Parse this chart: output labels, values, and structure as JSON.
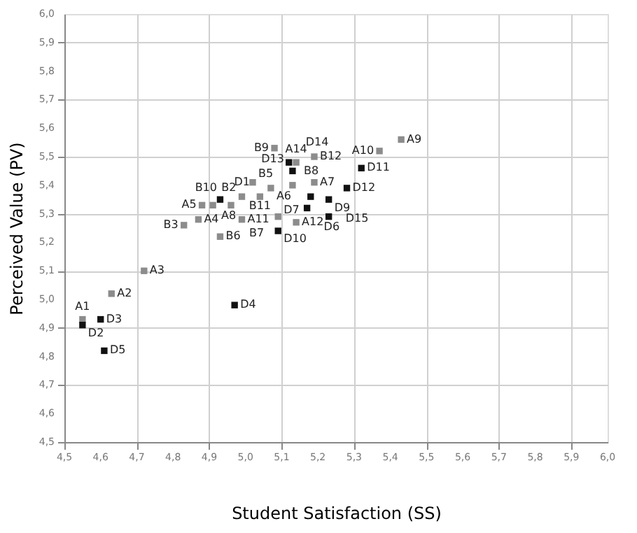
{
  "chart_data": {
    "type": "scatter",
    "xlabel": "Student Satisfaction (SS)",
    "ylabel": "Perceived Value (PV)",
    "marker": "square",
    "grid": true,
    "legend": false,
    "xlim": [
      4.5,
      6.0
    ],
    "ylim": [
      4.5,
      6.0
    ],
    "xticks": [
      {
        "value": 4.5,
        "label": "4,5"
      },
      {
        "value": 4.6,
        "label": "4,6"
      },
      {
        "value": 4.7,
        "label": "4,7"
      },
      {
        "value": 4.8,
        "label": "4,8"
      },
      {
        "value": 4.9,
        "label": "4,9"
      },
      {
        "value": 5.0,
        "label": "5,0"
      },
      {
        "value": 5.1,
        "label": "5,1"
      },
      {
        "value": 5.2,
        "label": "5,2"
      },
      {
        "value": 5.3,
        "label": "5,3"
      },
      {
        "value": 5.4,
        "label": "5,4"
      },
      {
        "value": 5.5,
        "label": "5,5"
      },
      {
        "value": 5.6,
        "label": "5,6"
      },
      {
        "value": 5.7,
        "label": "5,7"
      },
      {
        "value": 5.8,
        "label": "5,8"
      },
      {
        "value": 5.9,
        "label": "5,9"
      },
      {
        "value": 6.0,
        "label": "6,0"
      }
    ],
    "yticks": [
      {
        "value": 4.5,
        "label": "4,5"
      },
      {
        "value": 4.6,
        "label": "4,6"
      },
      {
        "value": 4.7,
        "label": "4,7"
      },
      {
        "value": 4.8,
        "label": "4,8"
      },
      {
        "value": 4.9,
        "label": "4,9"
      },
      {
        "value": 5.0,
        "label": "5,0"
      },
      {
        "value": 5.1,
        "label": "5,1"
      },
      {
        "value": 5.2,
        "label": "5,2"
      },
      {
        "value": 5.3,
        "label": "5,3"
      },
      {
        "value": 5.4,
        "label": "5,4"
      },
      {
        "value": 5.5,
        "label": "5,5"
      },
      {
        "value": 5.6,
        "label": "5,6"
      },
      {
        "value": 5.7,
        "label": "5,7"
      },
      {
        "value": 5.8,
        "label": "5,8"
      },
      {
        "value": 5.9,
        "label": "5,9"
      },
      {
        "value": 6.0,
        "label": "6,0"
      }
    ],
    "series": [
      {
        "color": "#8c8c8c",
        "x": [
          4.55,
          4.63,
          4.72,
          4.87,
          4.88,
          5.07,
          5.19,
          4.91,
          5.43,
          5.37,
          4.99,
          5.14,
          5.14,
          4.99,
          5.02,
          4.83,
          5.08,
          4.93,
          5.09,
          5.13,
          4.96,
          5.04,
          5.19
        ],
        "values": [
          4.93,
          5.02,
          5.1,
          5.28,
          5.33,
          5.39,
          5.41,
          5.33,
          5.56,
          5.52,
          5.28,
          5.27,
          5.48,
          5.36,
          5.41,
          5.26,
          5.53,
          5.22,
          5.29,
          5.4,
          5.33,
          5.36,
          5.5
        ]
      },
      {
        "color": "#111111",
        "x": [
          4.93,
          4.55,
          4.6,
          4.97,
          4.61,
          5.17,
          5.18,
          5.23,
          5.09,
          5.32,
          5.28,
          5.13,
          5.12,
          5.23
        ],
        "values": [
          5.35,
          4.91,
          4.93,
          4.98,
          4.82,
          5.32,
          5.36,
          5.29,
          5.24,
          5.46,
          5.39,
          5.45,
          5.48,
          5.35
        ]
      }
    ],
    "annotations": [
      {
        "text": "A1",
        "x": 4.55,
        "y": 4.93
      },
      {
        "text": "A2",
        "x": 4.63,
        "y": 5.02
      },
      {
        "text": "A3",
        "x": 4.72,
        "y": 5.1
      },
      {
        "text": "A4",
        "x": 4.87,
        "y": 5.28
      },
      {
        "text": "A5",
        "x": 4.88,
        "y": 5.33
      },
      {
        "text": "A6",
        "x": 5.07,
        "y": 5.39
      },
      {
        "text": "A7",
        "x": 5.19,
        "y": 5.41
      },
      {
        "text": "A8",
        "x": 4.91,
        "y": 5.33
      },
      {
        "text": "A9",
        "x": 5.43,
        "y": 5.56
      },
      {
        "text": "A10",
        "x": 5.37,
        "y": 5.52
      },
      {
        "text": "A11",
        "x": 4.99,
        "y": 5.28
      },
      {
        "text": "A12",
        "x": 5.14,
        "y": 5.27
      },
      {
        "text": "A14",
        "x": 5.14,
        "y": 5.48
      },
      {
        "text": "B2",
        "x": 4.99,
        "y": 5.36
      },
      {
        "text": "B5",
        "x": 5.02,
        "y": 5.41
      },
      {
        "text": "B3",
        "x": 4.83,
        "y": 5.26
      },
      {
        "text": "B9",
        "x": 5.08,
        "y": 5.53
      },
      {
        "text": "B6",
        "x": 4.93,
        "y": 5.22
      },
      {
        "text": "B7",
        "x": 5.09,
        "y": 5.29
      },
      {
        "text": "B8",
        "x": 5.13,
        "y": 5.4
      },
      {
        "text": "B10",
        "x": 4.96,
        "y": 5.33
      },
      {
        "text": "B11",
        "x": 5.04,
        "y": 5.36
      },
      {
        "text": "B12",
        "x": 5.19,
        "y": 5.5
      },
      {
        "text": "D1",
        "x": 4.93,
        "y": 5.35
      },
      {
        "text": "D2",
        "x": 4.55,
        "y": 4.91
      },
      {
        "text": "D3",
        "x": 4.6,
        "y": 4.93
      },
      {
        "text": "D4",
        "x": 4.97,
        "y": 4.98
      },
      {
        "text": "D5",
        "x": 4.61,
        "y": 4.82
      },
      {
        "text": "D6",
        "x": 5.17,
        "y": 5.32
      },
      {
        "text": "D7",
        "x": 5.18,
        "y": 5.36
      },
      {
        "text": "D9",
        "x": 5.23,
        "y": 5.29
      },
      {
        "text": "D10",
        "x": 5.09,
        "y": 5.24
      },
      {
        "text": "D11",
        "x": 5.32,
        "y": 5.46
      },
      {
        "text": "D12",
        "x": 5.28,
        "y": 5.39
      },
      {
        "text": "D13",
        "x": 5.13,
        "y": 5.45
      },
      {
        "text": "D14",
        "x": 5.12,
        "y": 5.48
      },
      {
        "text": "D15",
        "x": 5.23,
        "y": 5.35
      }
    ]
  }
}
